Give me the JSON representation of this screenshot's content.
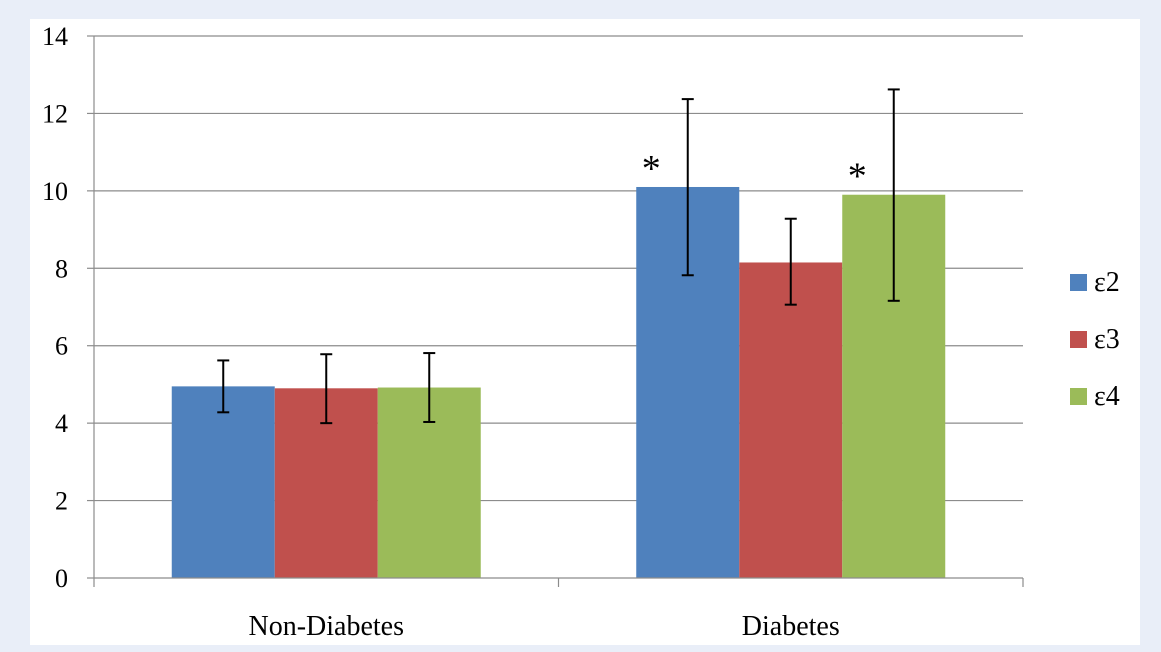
{
  "chart_data": {
    "type": "bar",
    "categories": [
      "Non-Diabetes",
      "Diabetes"
    ],
    "series": [
      {
        "name": "ε2",
        "color": "#4f81bd",
        "values": [
          4.95,
          10.1
        ],
        "err_low": [
          4.28,
          7.82
        ],
        "err_high": [
          5.62,
          12.37
        ]
      },
      {
        "name": "ε3",
        "color": "#c0504d",
        "values": [
          4.9,
          8.15
        ],
        "err_low": [
          4.0,
          7.06
        ],
        "err_high": [
          5.78,
          9.28
        ]
      },
      {
        "name": "ε4",
        "color": "#9bbb59",
        "values": [
          4.92,
          9.9
        ],
        "err_low": [
          4.03,
          7.16
        ],
        "err_high": [
          5.81,
          12.62
        ]
      }
    ],
    "significance_markers": [
      {
        "category": "Diabetes",
        "series": "ε2",
        "text": "*"
      },
      {
        "category": "Diabetes",
        "series": "ε4",
        "text": "*"
      }
    ],
    "y_ticks": [
      "0",
      "2",
      "4",
      "6",
      "8",
      "10",
      "12",
      "14"
    ],
    "ylim": [
      0,
      14
    ],
    "grid": true,
    "legend_position": "right",
    "title": "",
    "xlabel": "",
    "ylabel": ""
  }
}
